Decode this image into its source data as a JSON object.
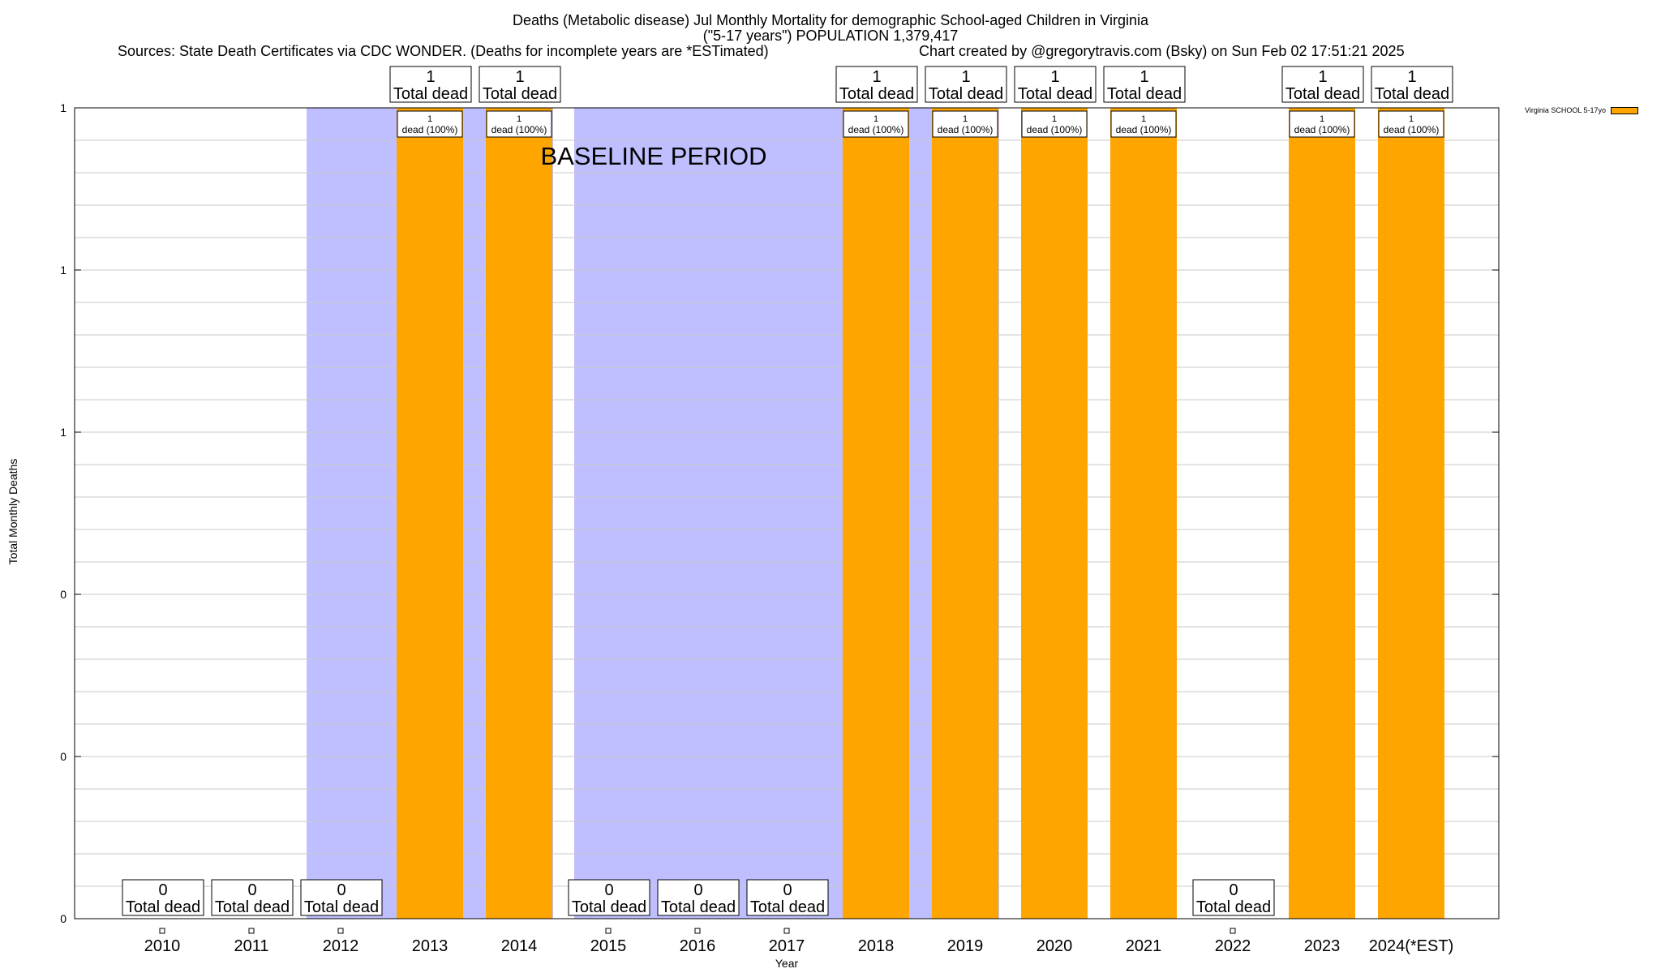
{
  "title": {
    "line1": "Deaths (Metabolic disease) Jul Monthly Mortality for demographic School-aged Children in Virginia",
    "line2": "(\"5-17 years\") POPULATION 1,379,417",
    "sources": "Sources: State Death Certificates via CDC WONDER. (Deaths for incomplete years are *ESTimated)",
    "credit": "Chart created by @gregorytravis.com (Bsky) on Sun Feb 02 17:51:21 2025"
  },
  "chart_data": {
    "type": "bar",
    "categories": [
      "2010",
      "2011",
      "2012",
      "2013",
      "2014",
      "2015",
      "2016",
      "2017",
      "2018",
      "2019",
      "2020",
      "2021",
      "2022",
      "2023",
      "2024(*EST)"
    ],
    "series": [
      {
        "name": "Virginia SCHOOL 5-17yo",
        "values": [
          0,
          0,
          0,
          1,
          1,
          0,
          0,
          0,
          1,
          1,
          1,
          1,
          0,
          1,
          1
        ]
      }
    ],
    "total_labels": [
      "0\nTotal dead",
      "0\nTotal dead",
      "0\nTotal dead",
      "1\nTotal dead",
      "1\nTotal dead",
      "0\nTotal dead",
      "0\nTotal dead",
      "0\nTotal dead",
      "1\nTotal dead",
      "1\nTotal dead",
      "1\nTotal dead",
      "1\nTotal dead",
      "0\nTotal dead",
      "1\nTotal dead",
      "1\nTotal dead"
    ],
    "inner_labels": [
      "",
      "",
      "",
      "1\ndead (100%)",
      "1\ndead (100%)",
      "",
      "",
      "",
      "1\ndead (100%)",
      "1\ndead (100%)",
      "1\ndead (100%)",
      "1\ndead (100%)",
      "",
      "1\ndead (100%)",
      "1\ndead (100%)"
    ],
    "ylim": [
      0,
      1
    ],
    "y_ticks": [
      {
        "value": 0,
        "label": "0"
      },
      {
        "value": 0.2,
        "label": "0"
      },
      {
        "value": 0.4,
        "label": "0"
      },
      {
        "value": 0.6,
        "label": "1"
      },
      {
        "value": 0.8,
        "label": "1"
      },
      {
        "value": 1,
        "label": "1"
      }
    ],
    "xlabel": "Year",
    "ylabel": "Total Monthly Deaths",
    "baseline_label": "BASELINE PERIOD",
    "baseline_spans": [
      [
        2012,
        2014
      ],
      [
        2015,
        2019
      ]
    ],
    "grid": true,
    "legend_position": "top-right",
    "colors": {
      "bar": "#ffa500",
      "baseline": "#bfbfff",
      "grid": "#c8c8c8"
    }
  }
}
